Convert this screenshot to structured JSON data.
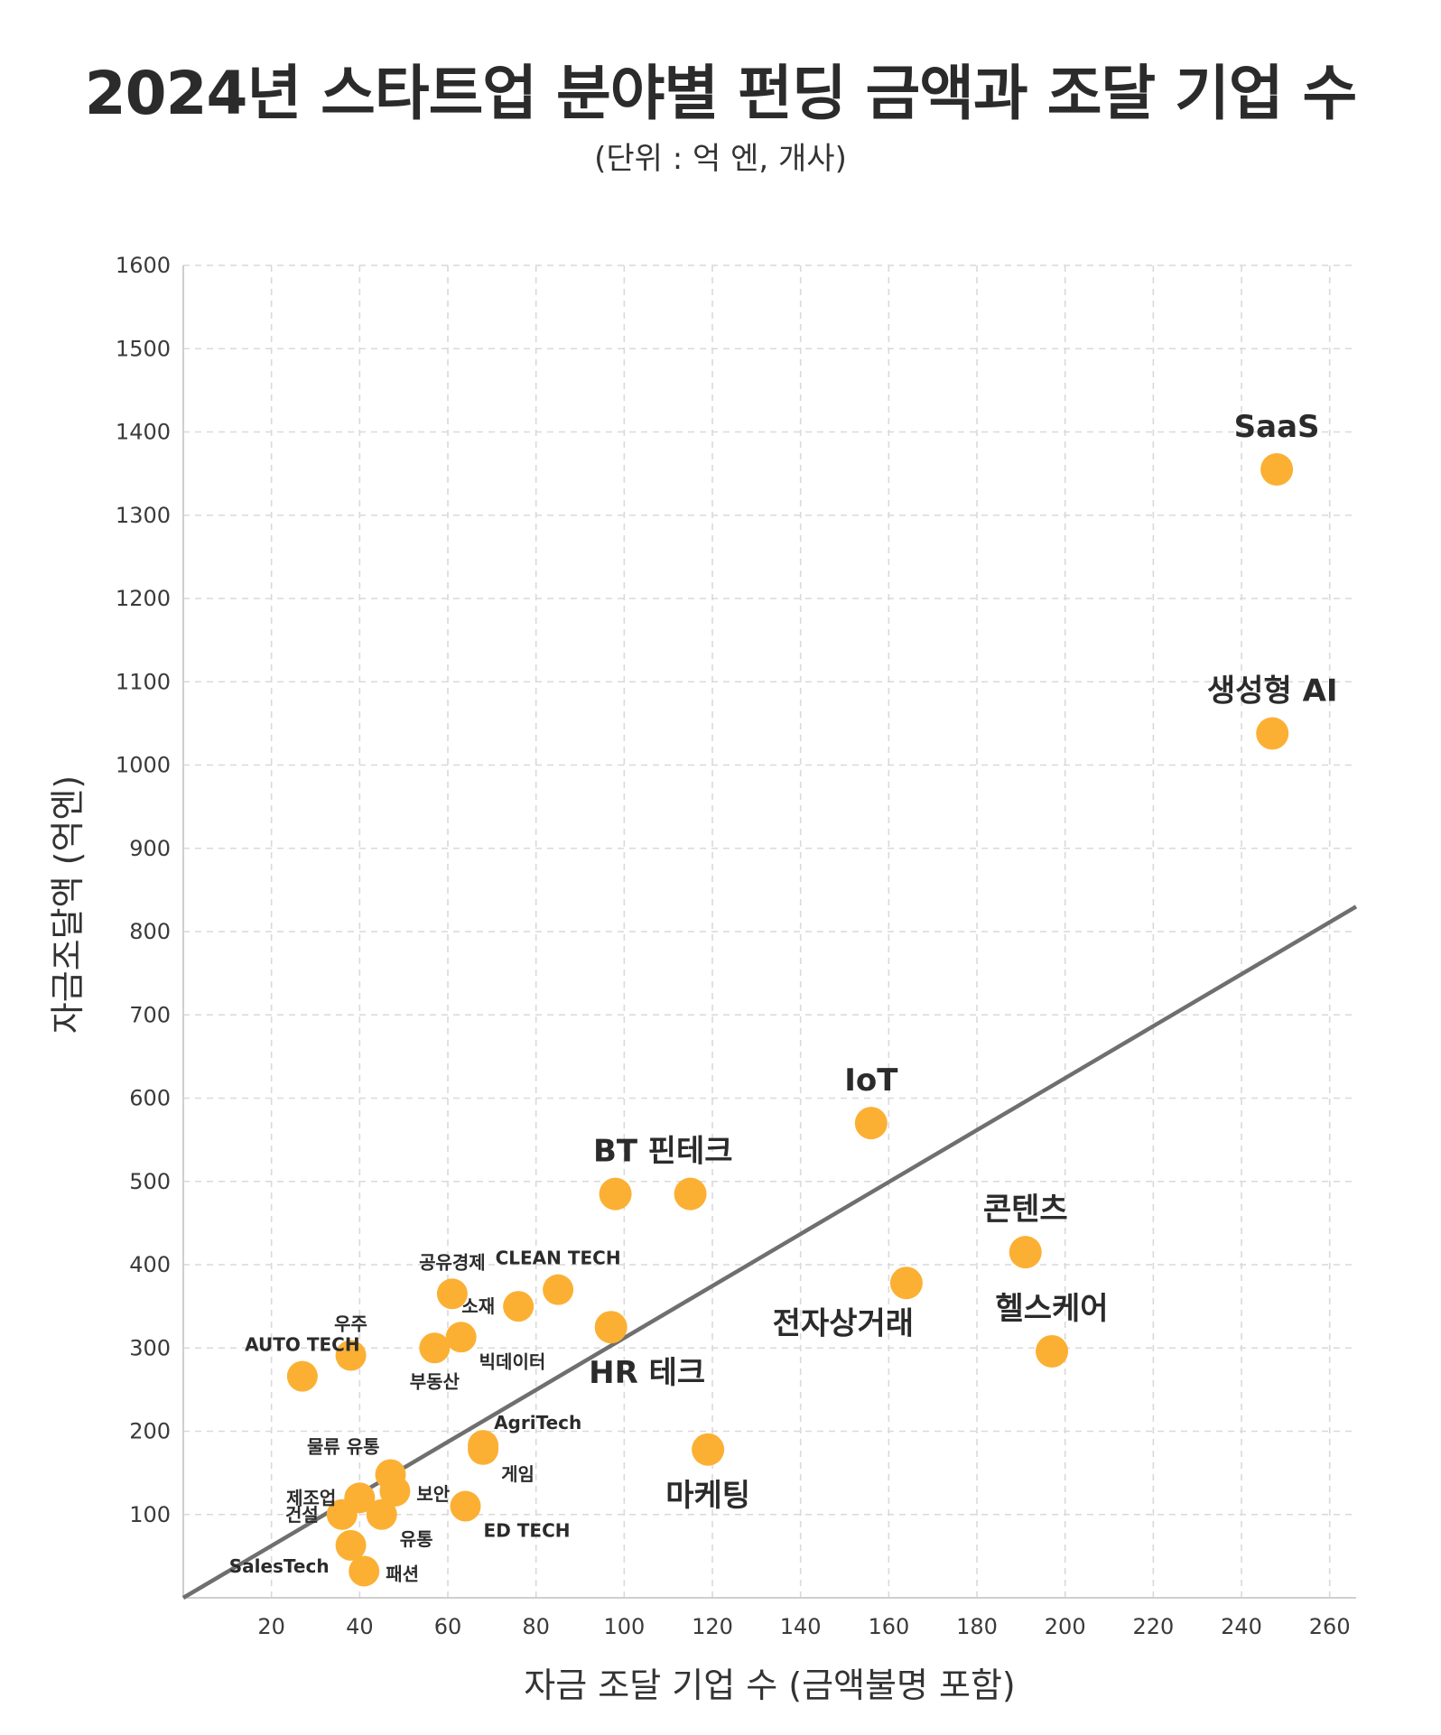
{
  "chart_data": {
    "type": "scatter",
    "title": "2024년 스타트업 분야별 펀딩 금액과 조달 기업 수",
    "subtitle": "(단위 : 억 엔, 개사)",
    "xlabel": "자금 조달 기업 수 (금액불명 포함)",
    "ylabel": "자금조달액 (억엔)",
    "xlim": [
      0,
      266
    ],
    "ylim": [
      0,
      1600
    ],
    "xticks": [
      20,
      40,
      60,
      80,
      100,
      120,
      140,
      160,
      180,
      200,
      220,
      240,
      260
    ],
    "yticks": [
      100,
      200,
      300,
      400,
      500,
      600,
      700,
      800,
      900,
      1000,
      1100,
      1200,
      1300,
      1400,
      1500,
      1600
    ],
    "grid": true,
    "point_color": "#FBB034",
    "trendline": {
      "x": [
        0,
        266
      ],
      "y": [
        0,
        830
      ],
      "color": "#6f6f6f"
    },
    "points": [
      {
        "label": "SaaS",
        "x": 248,
        "y": 1355,
        "size": "big",
        "pos": "above"
      },
      {
        "label": "생성형 AI",
        "x": 247,
        "y": 1038,
        "size": "big",
        "pos": "above"
      },
      {
        "label": "IoT",
        "x": 156,
        "y": 570,
        "size": "big",
        "pos": "above"
      },
      {
        "label": "BT",
        "x": 98,
        "y": 485,
        "size": "big",
        "pos": "above"
      },
      {
        "label": "핀테크",
        "x": 115,
        "y": 485,
        "size": "big",
        "pos": "above"
      },
      {
        "label": "콘텐츠",
        "x": 191,
        "y": 415,
        "size": "big",
        "pos": "above"
      },
      {
        "label": "전자상거래",
        "x": 164,
        "y": 378,
        "size": "big",
        "pos": "below-left"
      },
      {
        "label": "헬스케어",
        "x": 197,
        "y": 296,
        "size": "big",
        "pos": "above"
      },
      {
        "label": "HR 테크",
        "x": 97,
        "y": 325,
        "size": "big",
        "pos": "below-right"
      },
      {
        "label": "마케팅",
        "x": 119,
        "y": 178,
        "size": "big",
        "pos": "below"
      },
      {
        "label": "공유경제",
        "x": 61,
        "y": 365,
        "size": "small",
        "pos": "above"
      },
      {
        "label": "CLEAN TECH",
        "x": 85,
        "y": 370,
        "size": "small",
        "pos": "above"
      },
      {
        "label": "소재",
        "x": 76,
        "y": 350,
        "size": "small",
        "pos": "left"
      },
      {
        "label": "우주",
        "x": 38,
        "y": 291,
        "size": "small",
        "pos": "above"
      },
      {
        "label": "AUTO TECH",
        "x": 27,
        "y": 266,
        "size": "small",
        "pos": "above"
      },
      {
        "label": "부동산",
        "x": 57,
        "y": 300,
        "size": "small",
        "pos": "below"
      },
      {
        "label": "빅데이터",
        "x": 63,
        "y": 313,
        "size": "small",
        "pos": "below-right"
      },
      {
        "label": "AgriTech",
        "x": 68,
        "y": 183,
        "size": "small",
        "pos": "right-up"
      },
      {
        "label": "게임",
        "x": 68,
        "y": 178,
        "size": "small",
        "pos": "below-right"
      },
      {
        "label": "물류 유통",
        "x": 47,
        "y": 148,
        "size": "small",
        "pos": "above-left"
      },
      {
        "label": "제조업",
        "x": 40,
        "y": 120,
        "size": "small",
        "pos": "left"
      },
      {
        "label": "보안",
        "x": 48,
        "y": 128,
        "size": "small",
        "pos": "right"
      },
      {
        "label": "건설",
        "x": 36,
        "y": 100,
        "size": "small",
        "pos": "left"
      },
      {
        "label": "유통",
        "x": 45,
        "y": 100,
        "size": "small",
        "pos": "below-right"
      },
      {
        "label": "ED TECH",
        "x": 64,
        "y": 110,
        "size": "small",
        "pos": "below-right"
      },
      {
        "label": "SalesTech",
        "x": 38,
        "y": 63,
        "size": "small",
        "pos": "below-left"
      },
      {
        "label": "패션",
        "x": 41,
        "y": 32,
        "size": "small",
        "pos": "right"
      }
    ]
  }
}
